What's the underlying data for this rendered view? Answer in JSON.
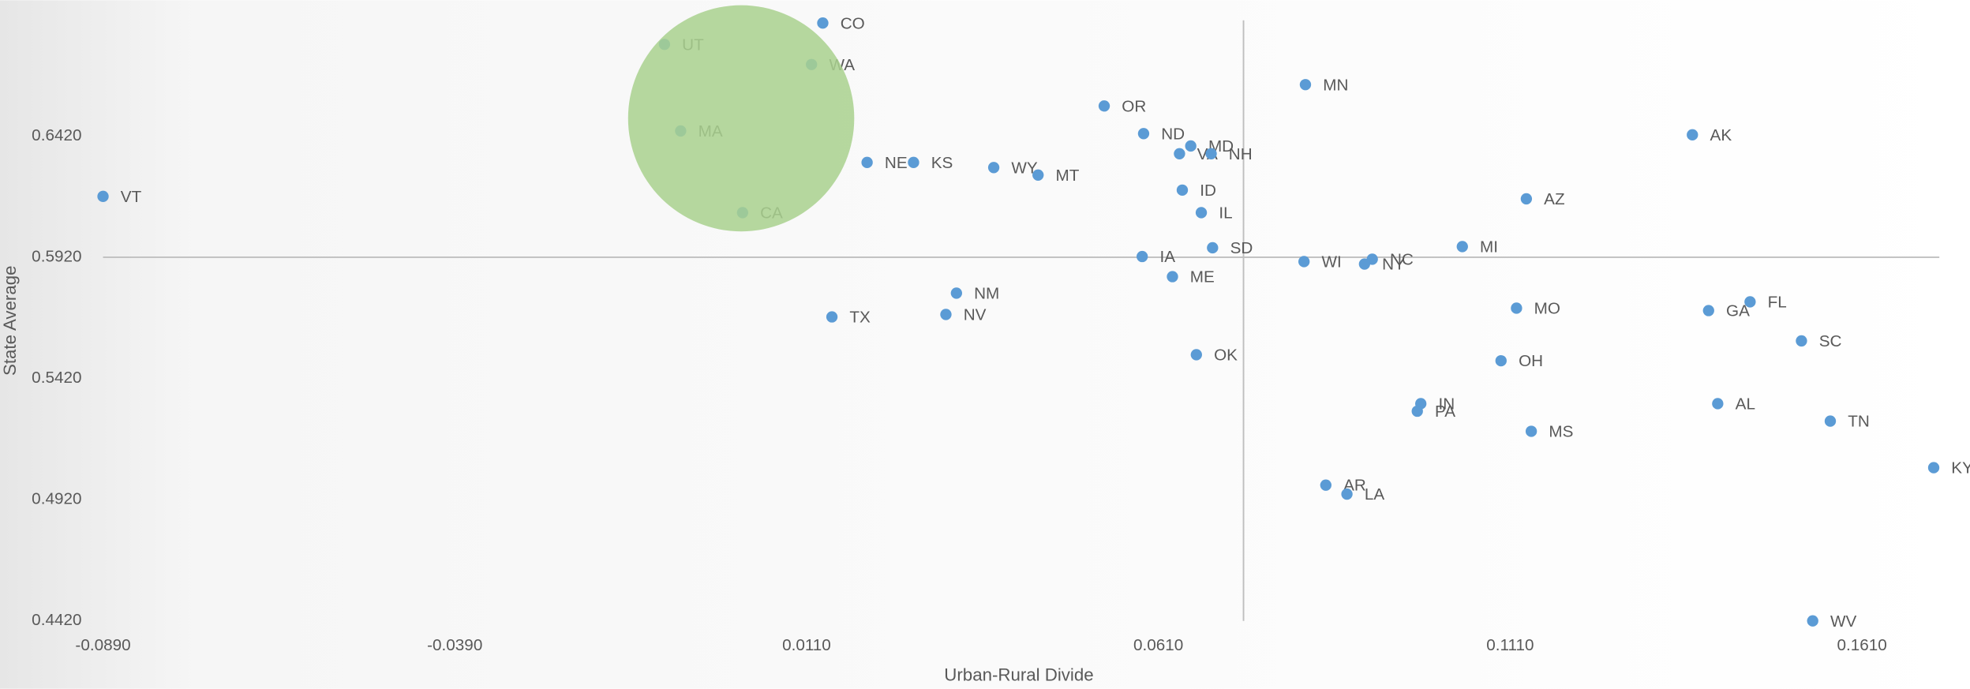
{
  "chart_data": {
    "type": "scatter",
    "x_label": "Urban-Rural Divide",
    "y_label": "State Average",
    "color": "#5b9bd5",
    "labels": [
      "CO",
      "UT",
      "WA",
      "MA",
      "CA",
      "VT",
      "OR",
      "ND",
      "MD",
      "VA",
      "NH",
      "NE",
      "KS",
      "WY",
      "MT",
      "MN",
      "AK",
      "ID",
      "IL",
      "AZ",
      "SD",
      "MI",
      "IA",
      "WI",
      "NC",
      "NY",
      "ME",
      "NM",
      "FL",
      "MO",
      "GA",
      "TX",
      "NV",
      "SC",
      "OK",
      "OH",
      "IN",
      "AL",
      "PA",
      "TN",
      "MS",
      "KY",
      "AR",
      "LA",
      "WV"
    ],
    "x": [
      0.0133,
      -0.0092,
      0.0117,
      -0.0069,
      0.0019,
      -0.089,
      0.0533,
      0.0589,
      0.0656,
      0.064,
      0.0685,
      0.0196,
      0.0262,
      0.0376,
      0.0439,
      0.0819,
      0.1369,
      0.0644,
      0.0671,
      0.1133,
      0.0687,
      0.1042,
      0.0587,
      0.0817,
      0.0914,
      0.0903,
      0.063,
      0.0323,
      0.1451,
      0.1119,
      0.1392,
      0.0146,
      0.0308,
      0.1524,
      0.0664,
      0.1097,
      0.0983,
      0.1405,
      0.0978,
      0.1565,
      0.114,
      0.1712,
      0.0848,
      0.0878,
      0.154
    ],
    "y": [
      0.6886,
      0.6798,
      0.6715,
      0.6441,
      0.6104,
      0.6171,
      0.6544,
      0.643,
      0.6379,
      0.6347,
      0.6347,
      0.6311,
      0.6311,
      0.629,
      0.6259,
      0.6632,
      0.6425,
      0.6197,
      0.6104,
      0.6161,
      0.5959,
      0.5964,
      0.5923,
      0.5902,
      0.5912,
      0.5892,
      0.584,
      0.5772,
      0.5736,
      0.571,
      0.57,
      0.5674,
      0.5684,
      0.5575,
      0.5518,
      0.5493,
      0.5316,
      0.5316,
      0.5285,
      0.5244,
      0.5202,
      0.5052,
      0.498,
      0.4943,
      0.442
    ],
    "xlim": [
      -0.089,
      0.172
    ],
    "ylim": [
      0.442,
      0.698
    ],
    "xticks": [
      {
        "value": -0.089,
        "label": "-0.0890"
      },
      {
        "value": -0.039,
        "label": "-0.0390"
      },
      {
        "value": 0.011,
        "label": "0.0110"
      },
      {
        "value": 0.061,
        "label": "0.0610"
      },
      {
        "value": 0.111,
        "label": "0.1110"
      },
      {
        "value": 0.161,
        "label": "0.1610"
      }
    ],
    "yticks": [
      {
        "value": 0.442,
        "label": "0.4420"
      },
      {
        "value": 0.492,
        "label": "0.4920"
      },
      {
        "value": 0.542,
        "label": "0.5420"
      },
      {
        "value": 0.592,
        "label": "0.5920"
      },
      {
        "value": 0.642,
        "label": "0.6420"
      }
    ],
    "x_ref": 0.0731,
    "y_ref": 0.592,
    "highlight": {
      "x": 0.0017,
      "y": 0.6493,
      "color": "#a9d18e"
    }
  }
}
